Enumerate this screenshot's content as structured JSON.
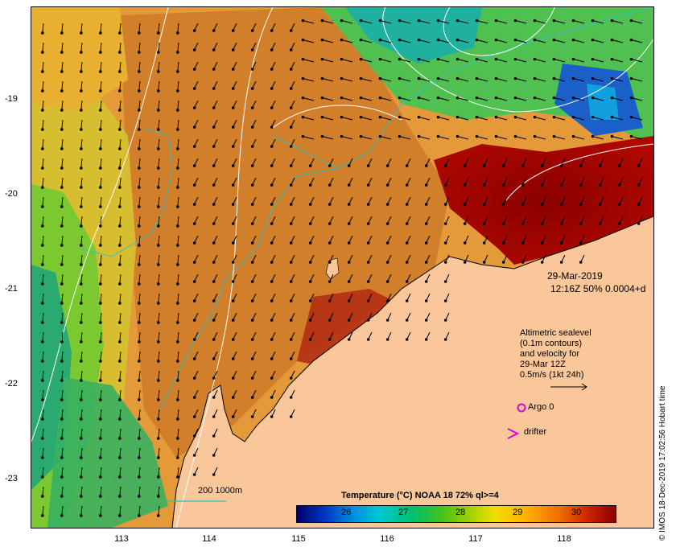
{
  "map": {
    "date_label": "29-Mar-2019",
    "time_label": "12:16Z  50% 0.0004+d",
    "legend": {
      "altimetry_lines": [
        "Altimetric sealevel",
        "(0.1m contours)",
        "and velocity for",
        "29-Mar 12Z",
        "0.5m/s (1kt 24h)"
      ],
      "argo_label": "Argo 0",
      "drifter_label": "drifter",
      "argo_color": "#e000e0",
      "drifter_color": "#e000e0"
    },
    "bathymetry_legend": "200  1000m",
    "bathymetry_color": "#30c0c0",
    "colorbar": {
      "title": "Temperature (°C) NOAA 18 72% ql>=4",
      "ticks": [
        "26",
        "27",
        "28",
        "29",
        "30"
      ]
    },
    "x_ticks": [
      "113",
      "114",
      "115",
      "116",
      "117",
      "118"
    ],
    "y_ticks": [
      "-19",
      "-20",
      "-21",
      "-22",
      "-23"
    ],
    "credit": "© IMOS 18-Dec-2019 17:02:56 Hobart time",
    "land_color": "#fac79a"
  }
}
